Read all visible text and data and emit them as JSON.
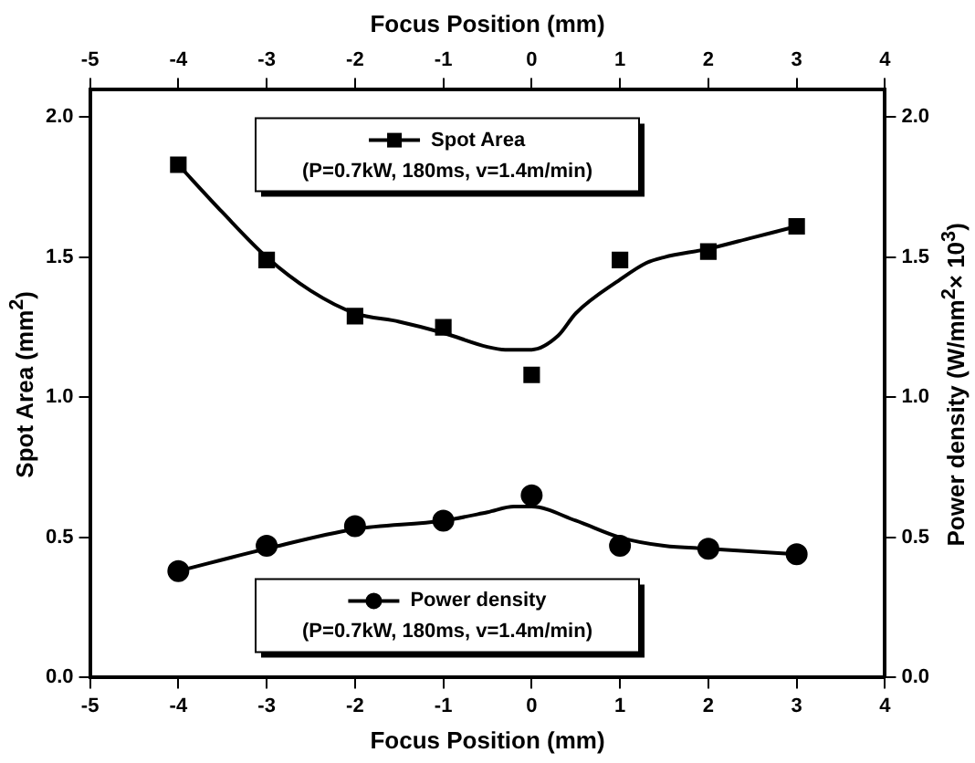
{
  "chart_data": {
    "type": "line",
    "xlabel": "Focus Position (mm)",
    "x2label": "Focus Position (mm)",
    "ylabel": "Spot Area (mm$^{2}$)",
    "y2label": "Power density (W/mm$^{2}$× 10$^{3}$)",
    "xlim": [
      -5,
      4
    ],
    "xticks": [
      -5,
      -4,
      -3,
      -2,
      -1,
      0,
      1,
      2,
      3,
      4
    ],
    "x2lim": [
      -5,
      4
    ],
    "x2ticks": [
      -5,
      -4,
      -3,
      -2,
      -1,
      0,
      1,
      2,
      3,
      4
    ],
    "ylim": [
      0,
      2.1
    ],
    "yticks": [
      {
        "value": 0,
        "label": "0.0"
      },
      0.5,
      {
        "value": 1,
        "label": "1.0"
      },
      1.5,
      {
        "value": 2,
        "label": "2.0"
      }
    ],
    "y2lim": [
      0,
      2.1
    ],
    "y2ticks": [
      {
        "value": 0,
        "label": "0.0"
      },
      0.5,
      {
        "value": 1,
        "label": "1.0"
      },
      1.5,
      {
        "value": 2,
        "label": "2.0"
      }
    ],
    "x": [
      -4,
      -3,
      -2,
      -1,
      0,
      1,
      2,
      3
    ],
    "series": [
      {
        "name": "Spot Area",
        "type": "scatter",
        "color": "#000000",
        "marker": "square",
        "values": [
          1.83,
          1.49,
          1.29,
          1.25,
          1.08,
          1.49,
          1.52,
          1.61
        ]
      },
      {
        "type": "line",
        "color": "#000000",
        "marker": "none",
        "x": [
          -4,
          -3.5,
          -3,
          -2.5,
          -2,
          -1.5,
          -1,
          -0.5,
          -0.3,
          0,
          0.3,
          0.5,
          1,
          1.3,
          1.5,
          2,
          2.5,
          3
        ],
        "values": [
          1.83,
          1.66,
          1.5,
          1.38,
          1.3,
          1.27,
          1.23,
          1.18,
          1.17,
          1.17,
          1.22,
          1.3,
          1.42,
          1.48,
          1.5,
          1.53,
          1.57,
          1.61
        ]
      },
      {
        "name": "Power density",
        "type": "scatter",
        "axis": "y2",
        "color": "#000000",
        "marker": "circle",
        "values": [
          0.38,
          0.47,
          0.54,
          0.56,
          0.65,
          0.47,
          0.46,
          0.44
        ]
      },
      {
        "type": "line",
        "axis": "y2",
        "color": "#000000",
        "marker": "none",
        "x": [
          -4,
          -3,
          -2,
          -1,
          -0.5,
          -0.2,
          0,
          0.5,
          1,
          1.5,
          2,
          3
        ],
        "values": [
          0.38,
          0.46,
          0.53,
          0.56,
          0.59,
          0.61,
          0.61,
          0.56,
          0.5,
          0.47,
          0.46,
          0.44
        ]
      }
    ],
    "legend": "top",
    "annotations": [
      "(P=0.7kW, 180ms, v=1.4m/min)",
      "(P=0.7kW, 180ms, v=1.4m/min)"
    ],
    "grid": false
  }
}
